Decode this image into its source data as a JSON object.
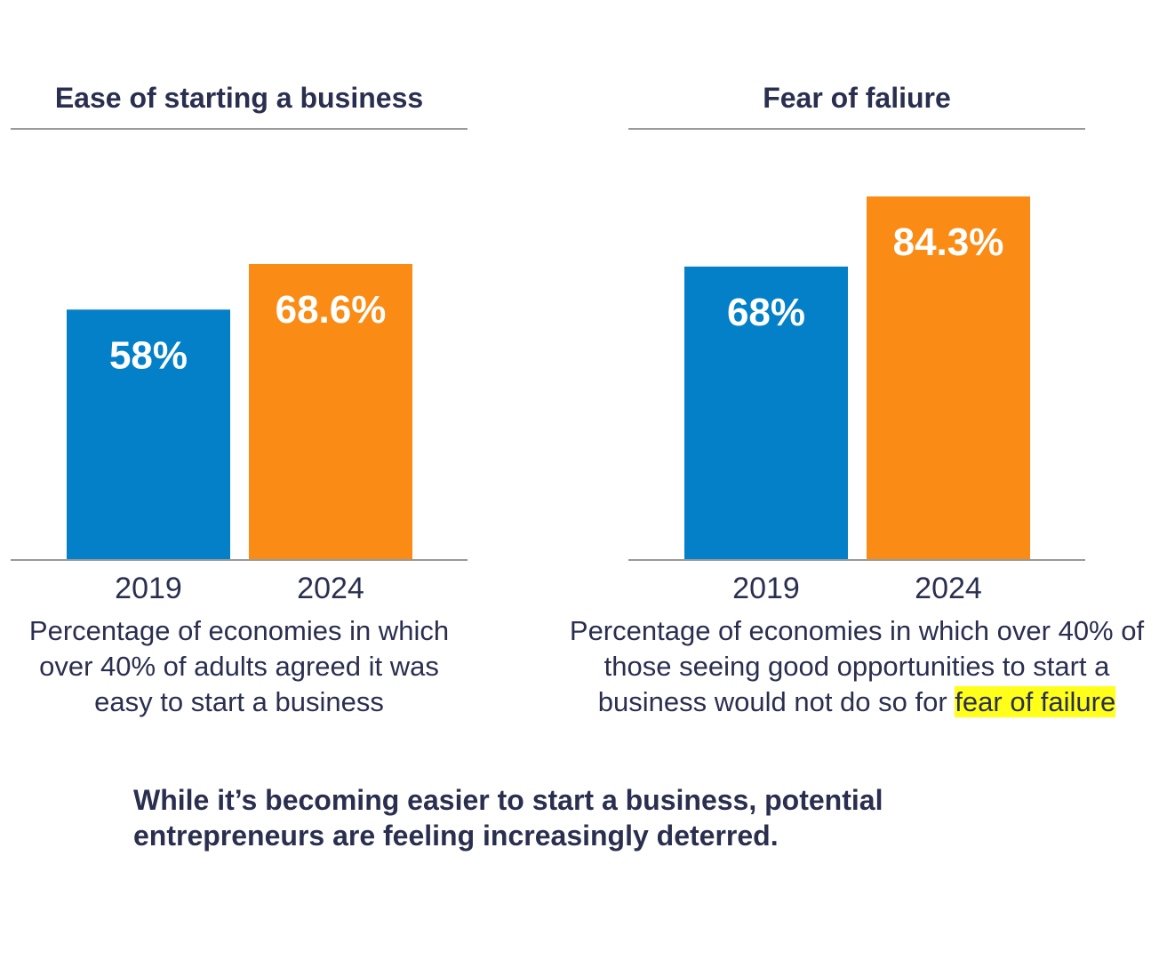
{
  "colors": {
    "y2019": "#0480c9",
    "y2024": "#fa8c16",
    "text": "#2a2f4f",
    "rule": "#9a9a9a",
    "highlight": "#ffff1a"
  },
  "chart_data": [
    {
      "type": "bar",
      "title": "Ease of starting a business",
      "categories": [
        "2019",
        "2024"
      ],
      "values": [
        58,
        68.6
      ],
      "value_labels": [
        "58%",
        "68.6%"
      ],
      "ylim": [
        0,
        100
      ],
      "grid": false,
      "caption": "Percentage of economies in which over 40% of adults agreed it was easy to start a business"
    },
    {
      "type": "bar",
      "title": "Fear of faliure",
      "categories": [
        "2019",
        "2024"
      ],
      "values": [
        68,
        84.3
      ],
      "value_labels": [
        "68%",
        "84.3%"
      ],
      "ylim": [
        0,
        100
      ],
      "grid": false,
      "caption": "Percentage of economies in which over 40% of those seeing good opportunities to start a business would not do so for",
      "caption_highlight": "fear of failure"
    }
  ],
  "footer": "While it’s becoming easier to start a business, potential entrepreneurs are feeling increasingly deterred."
}
